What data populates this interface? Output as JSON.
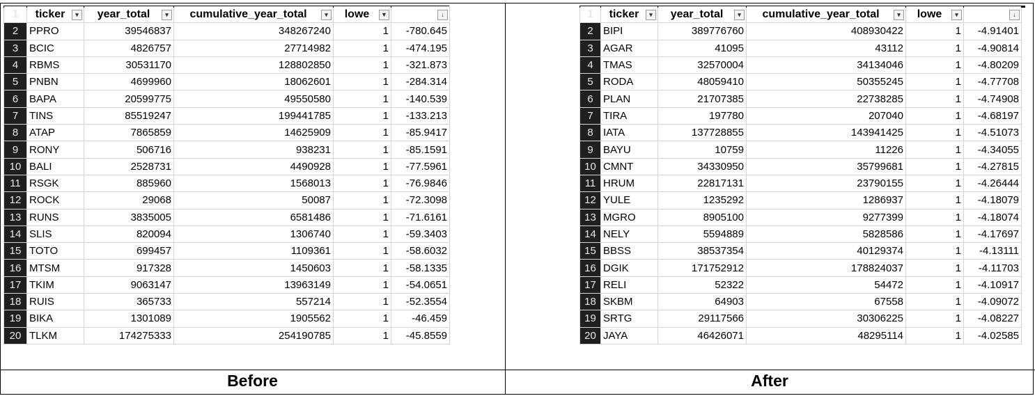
{
  "captions": {
    "before": "Before",
    "after": "After"
  },
  "before": {
    "headers": [
      "ticker",
      "year_total",
      "cumulative_year_total",
      "lowe",
      ""
    ],
    "filter_icons": [
      "dropdown-arrow",
      "dropdown-arrow",
      "dropdown-arrow",
      "filter-funnel",
      "sort-descending"
    ],
    "rows": [
      [
        "2",
        "PPRO",
        "39546837",
        "348267240",
        "1",
        "-780.645"
      ],
      [
        "3",
        "BCIC",
        "4826757",
        "27714982",
        "1",
        "-474.195"
      ],
      [
        "4",
        "RBMS",
        "30531170",
        "128802850",
        "1",
        "-321.873"
      ],
      [
        "5",
        "PNBN",
        "4699960",
        "18062601",
        "1",
        "-284.314"
      ],
      [
        "6",
        "BAPA",
        "20599775",
        "49550580",
        "1",
        "-140.539"
      ],
      [
        "7",
        "TINS",
        "85519247",
        "199441785",
        "1",
        "-133.213"
      ],
      [
        "8",
        "ATAP",
        "7865859",
        "14625909",
        "1",
        "-85.9417"
      ],
      [
        "9",
        "RONY",
        "506716",
        "938231",
        "1",
        "-85.1591"
      ],
      [
        "10",
        "BALI",
        "2528731",
        "4490928",
        "1",
        "-77.5961"
      ],
      [
        "11",
        "RSGK",
        "885960",
        "1568013",
        "1",
        "-76.9846"
      ],
      [
        "12",
        "ROCK",
        "29068",
        "50087",
        "1",
        "-72.3098"
      ],
      [
        "13",
        "RUNS",
        "3835005",
        "6581486",
        "1",
        "-71.6161"
      ],
      [
        "14",
        "SLIS",
        "820094",
        "1306740",
        "1",
        "-59.3403"
      ],
      [
        "15",
        "TOTO",
        "699457",
        "1109361",
        "1",
        "-58.6032"
      ],
      [
        "16",
        "MTSM",
        "917328",
        "1450603",
        "1",
        "-58.1335"
      ],
      [
        "17",
        "TKIM",
        "9063147",
        "13963149",
        "1",
        "-54.0651"
      ],
      [
        "18",
        "RUIS",
        "365733",
        "557214",
        "1",
        "-52.3554"
      ],
      [
        "19",
        "BIKA",
        "1301089",
        "1905562",
        "1",
        "-46.459"
      ],
      [
        "20",
        "TLKM",
        "174275333",
        "254190785",
        "1",
        "-45.8559"
      ]
    ]
  },
  "after": {
    "headers": [
      "ticker",
      "year_total",
      "cumulative_year_total",
      "lowe",
      ""
    ],
    "filter_icons": [
      "dropdown-arrow",
      "dropdown-arrow",
      "dropdown-arrow",
      "dropdown-arrow",
      "sort-descending"
    ],
    "rows": [
      [
        "2",
        "BIPI",
        "389776760",
        "408930422",
        "1",
        "-4.91401"
      ],
      [
        "3",
        "AGAR",
        "41095",
        "43112",
        "1",
        "-4.90814"
      ],
      [
        "4",
        "TMAS",
        "32570004",
        "34134046",
        "1",
        "-4.80209"
      ],
      [
        "5",
        "RODA",
        "48059410",
        "50355245",
        "1",
        "-4.77708"
      ],
      [
        "6",
        "PLAN",
        "21707385",
        "22738285",
        "1",
        "-4.74908"
      ],
      [
        "7",
        "TIRA",
        "197780",
        "207040",
        "1",
        "-4.68197"
      ],
      [
        "8",
        "IATA",
        "137728855",
        "143941425",
        "1",
        "-4.51073"
      ],
      [
        "9",
        "BAYU",
        "10759",
        "11226",
        "1",
        "-4.34055"
      ],
      [
        "10",
        "CMNT",
        "34330950",
        "35799681",
        "1",
        "-4.27815"
      ],
      [
        "11",
        "HRUM",
        "22817131",
        "23790155",
        "1",
        "-4.26444"
      ],
      [
        "12",
        "YULE",
        "1235292",
        "1286937",
        "1",
        "-4.18079"
      ],
      [
        "13",
        "MGRO",
        "8905100",
        "9277399",
        "1",
        "-4.18074"
      ],
      [
        "14",
        "NELY",
        "5594889",
        "5828586",
        "1",
        "-4.17697"
      ],
      [
        "15",
        "BBSS",
        "38537354",
        "40129374",
        "1",
        "-4.13111"
      ],
      [
        "16",
        "DGIK",
        "171752912",
        "178824037",
        "1",
        "-4.11703"
      ],
      [
        "17",
        "RELI",
        "52322",
        "54472",
        "1",
        "-4.10917"
      ],
      [
        "18",
        "SKBM",
        "64903",
        "67558",
        "1",
        "-4.09072"
      ],
      [
        "19",
        "SRTG",
        "29117566",
        "30306225",
        "1",
        "-4.08227"
      ],
      [
        "20",
        "JAYA",
        "46426071",
        "48295114",
        "1",
        "-4.02585"
      ]
    ]
  }
}
